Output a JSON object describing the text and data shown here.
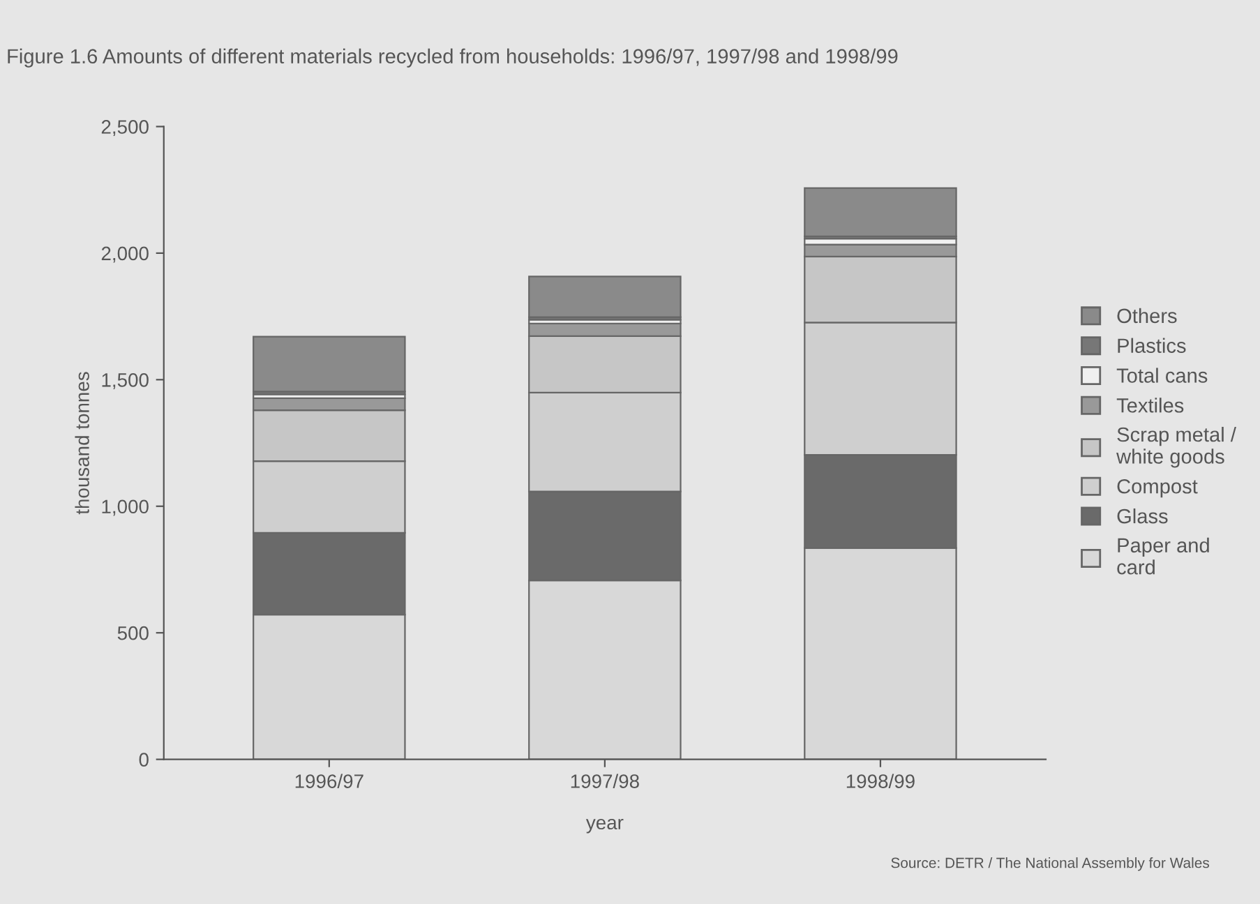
{
  "chart_data": {
    "type": "bar",
    "stacked": true,
    "title": "Figure 1.6 Amounts of different materials recycled from households: 1996/97, 1997/98 and 1998/99",
    "xlabel": "year",
    "ylabel": "thousand tonnes",
    "categories": [
      "1996/97",
      "1997/98",
      "1998/99"
    ],
    "series": [
      {
        "name": "Paper and\ncard",
        "color": "#d8d8d8",
        "values": [
          572,
          707,
          835
        ]
      },
      {
        "name": "Glass",
        "color": "#6a6a6a",
        "values": [
          323,
          351,
          368
        ]
      },
      {
        "name": "Compost",
        "color": "#cfcfcf",
        "values": [
          283,
          391,
          523
        ]
      },
      {
        "name": "Scrap metal /\nwhite goods",
        "color": "#c6c6c6",
        "values": [
          201,
          223,
          260
        ]
      },
      {
        "name": "Textiles",
        "color": "#999999",
        "values": [
          48,
          50,
          48
        ]
      },
      {
        "name": "Total cans",
        "color": "#f0f0f0",
        "values": [
          15,
          15,
          23
        ]
      },
      {
        "name": "Plastics",
        "color": "#777777",
        "values": [
          11,
          10,
          9
        ]
      },
      {
        "name": "Others",
        "color": "#8a8a8a",
        "values": [
          217,
          161,
          191
        ]
      }
    ],
    "ylim": [
      0,
      2500
    ],
    "yticks": [
      0,
      {
        "value": 500,
        "label": "500"
      },
      {
        "value": 1000,
        "label": "1,000"
      },
      {
        "value": 1500,
        "label": "1,500"
      },
      {
        "value": 2000,
        "label": "2,000"
      },
      {
        "value": 2500,
        "label": "2,500"
      }
    ],
    "grid": false,
    "legend": "right",
    "annotations": [
      "Source: DETR / The National Assembly for Wales"
    ]
  }
}
